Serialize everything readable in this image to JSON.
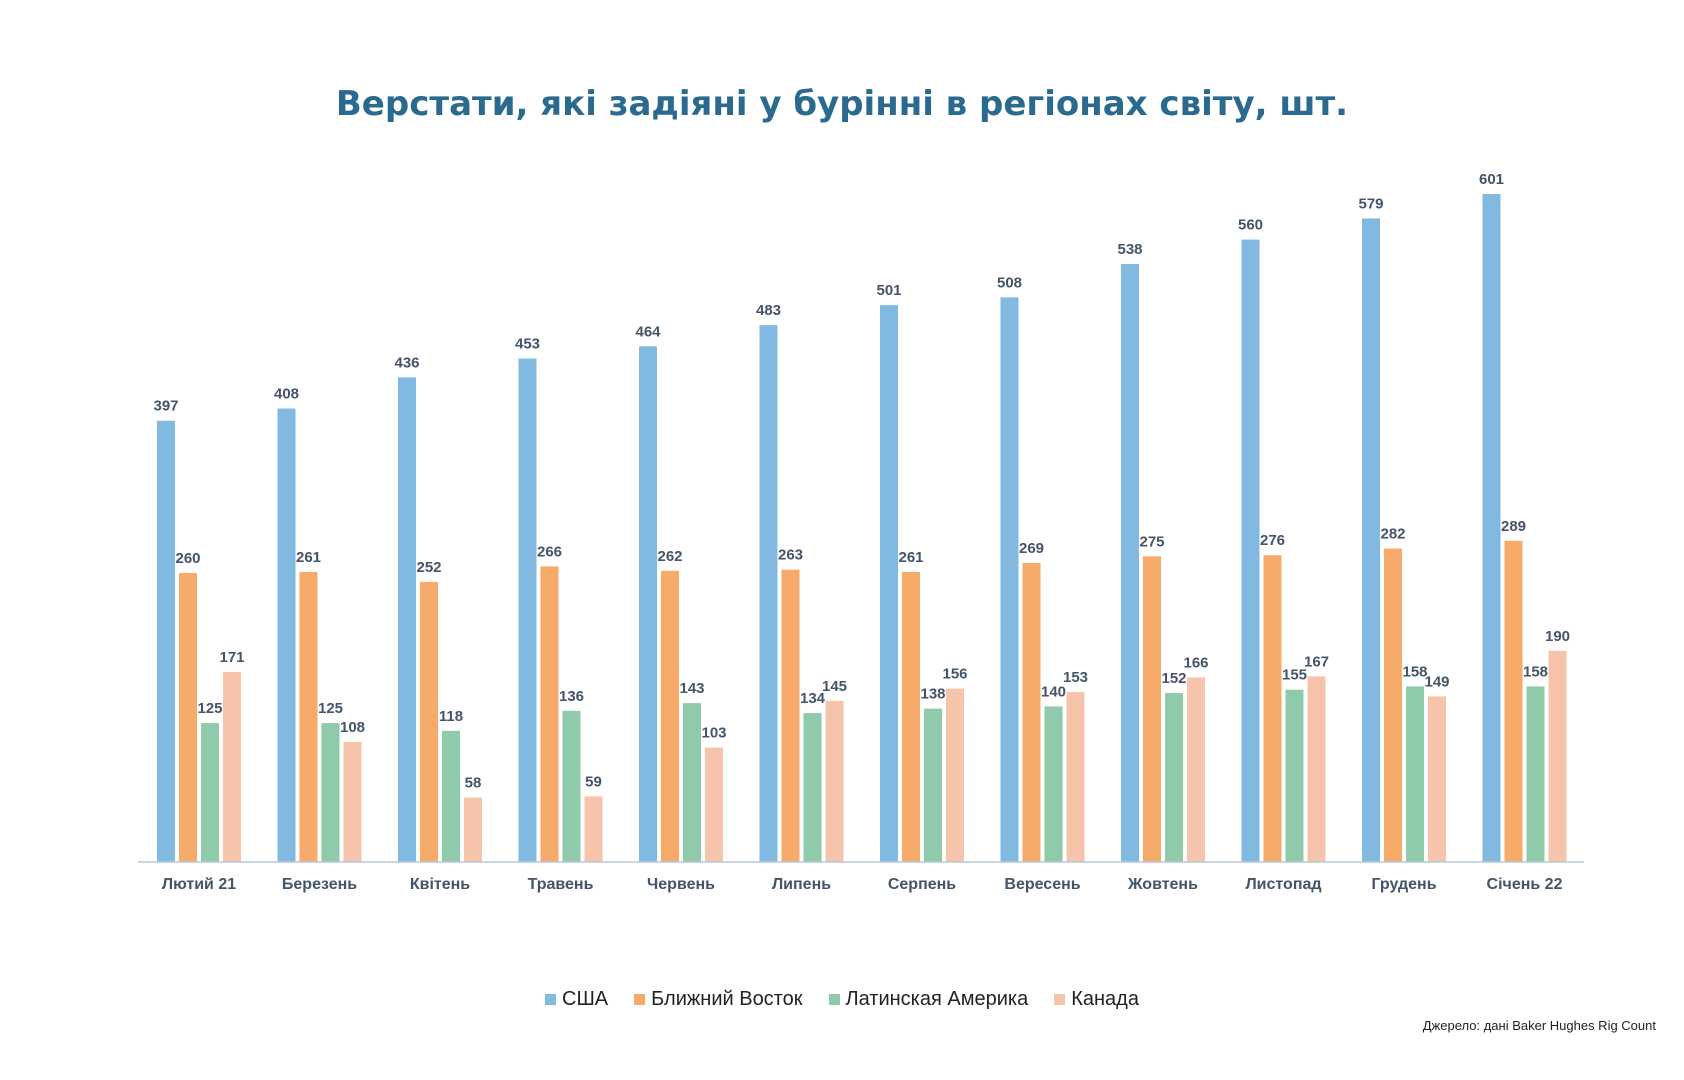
{
  "chart_data": {
    "type": "bar",
    "title": "Верстати, які задіяні у бурінні в регіонах світу, шт.",
    "categories": [
      "Лютий 21",
      "Березень",
      "Квітень",
      "Травень",
      "Червень",
      "Липень",
      "Серпень",
      "Вересень",
      "Жовтень",
      "Листопад",
      "Грудень",
      "Січень 22"
    ],
    "series": [
      {
        "name": "США",
        "color": "#82b9e1",
        "values": [
          397,
          408,
          436,
          453,
          464,
          483,
          501,
          508,
          538,
          560,
          579,
          601
        ]
      },
      {
        "name": "Ближний Восток",
        "color": "#f6ab6b",
        "values": [
          260,
          261,
          252,
          266,
          262,
          263,
          261,
          269,
          275,
          276,
          282,
          289
        ]
      },
      {
        "name": "Латинская Америка",
        "color": "#8fcbab",
        "values": [
          125,
          125,
          118,
          136,
          143,
          134,
          138,
          140,
          152,
          155,
          158,
          158
        ]
      },
      {
        "name": "Канада",
        "color": "#f6c4ab",
        "values": [
          171,
          108,
          58,
          59,
          103,
          145,
          156,
          153,
          166,
          167,
          149,
          190
        ]
      }
    ],
    "ylim": [
      0,
      601
    ],
    "grid": false,
    "legend_position": "bottom",
    "axis_color": "#b8c8d8",
    "label_color": "#44546a",
    "title_color": "#2a6a8e"
  },
  "source_note": "Джерело: дані Baker Hughes Rig Count"
}
